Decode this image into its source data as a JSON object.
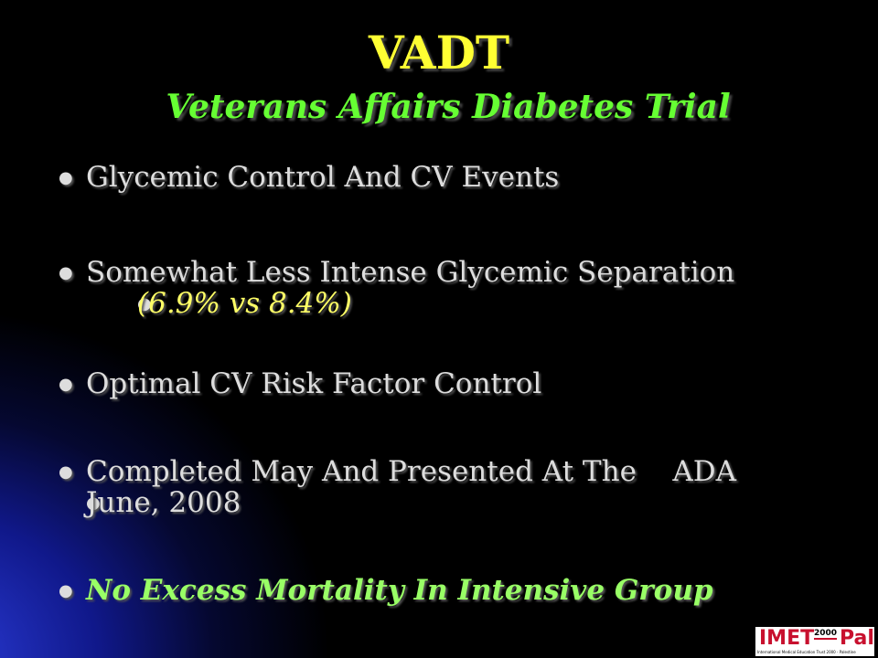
{
  "title": "VADT",
  "subtitle": "Veterans Affairs Diabetes Trial",
  "bullets": [
    {
      "text": "Glycemic Control And CV Events"
    },
    {
      "text": "Somewhat Less Intense Glycemic Separation",
      "detail": "(6.9% vs 8.4%)"
    },
    {
      "text": "Optimal CV Risk Factor Control"
    },
    {
      "text": "Completed May And Presented At The    ADA",
      "line2": "June, 2008"
    },
    {
      "text": "No Excess Mortality In Intensive Group"
    }
  ],
  "logo": {
    "imet": "IMET",
    "year": "2000",
    "pal": "Pal",
    "caption": "International Medical Education Trust 2000 - Palestine"
  }
}
